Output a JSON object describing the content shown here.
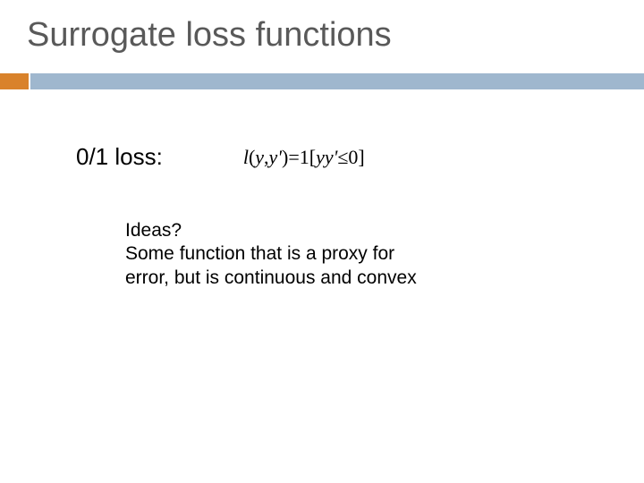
{
  "slide": {
    "title": "Surrogate loss functions",
    "rule_colors": {
      "accent": "#d9822b",
      "main": "#9fb7ce"
    },
    "title_color": "#595959",
    "title_fontsize": 38,
    "loss_label": "0/1 loss:",
    "loss_label_fontsize": 26,
    "formula": {
      "fn": "l",
      "open_args": "(",
      "arg1": "y",
      "comma": ",",
      "arg2": "y'",
      "close_args": ")",
      "eq": "=",
      "one": "1",
      "lbracket": "[",
      "prod": "yy'",
      "le": "≤",
      "zero": "0",
      "rbracket": "]",
      "fontsize": 22
    },
    "ideas": {
      "line1": "Ideas?",
      "body": "Some function that is a proxy for error, but is continuous and convex",
      "fontsize": 21
    }
  }
}
